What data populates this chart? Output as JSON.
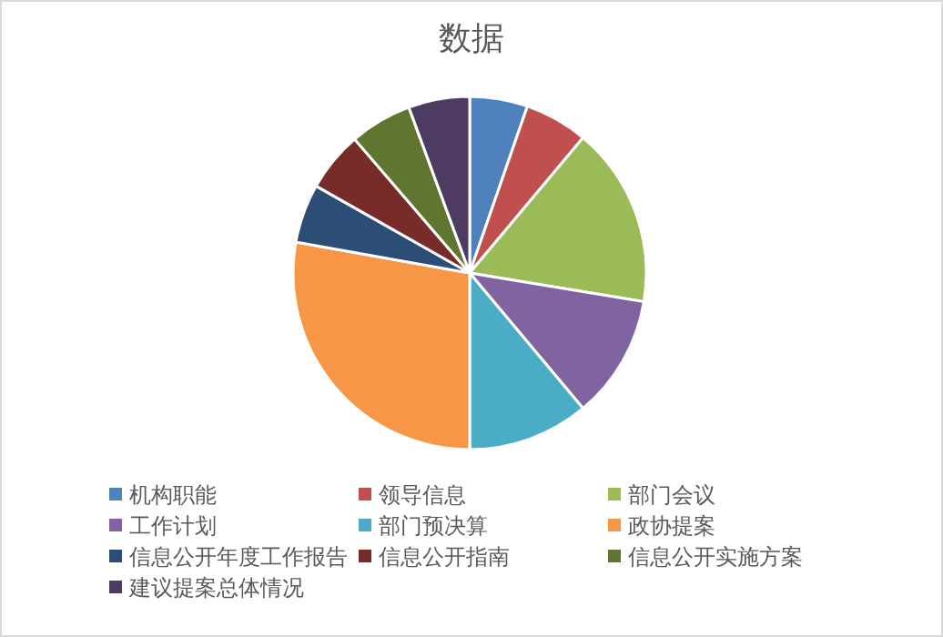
{
  "chart_data": {
    "type": "pie",
    "title": "数据",
    "categories": [
      "机构职能",
      "领导信息",
      "部门会议",
      "工作计划",
      "部门预决算",
      "政协提案",
      "信息公开年度工作报告",
      "信息公开指南",
      "信息公开实施方案",
      "建议提案总体情况"
    ],
    "values": [
      5.3,
      5.8,
      16.5,
      11.3,
      11.1,
      27.8,
      5.4,
      5.5,
      5.7,
      5.6
    ],
    "colors": [
      "#4f81bd",
      "#c0504d",
      "#9bbb59",
      "#8064a2",
      "#4bacc6",
      "#f79646",
      "#2c4d75",
      "#772c2a",
      "#5f7530",
      "#4d3b62"
    ],
    "legend": "bottom"
  }
}
